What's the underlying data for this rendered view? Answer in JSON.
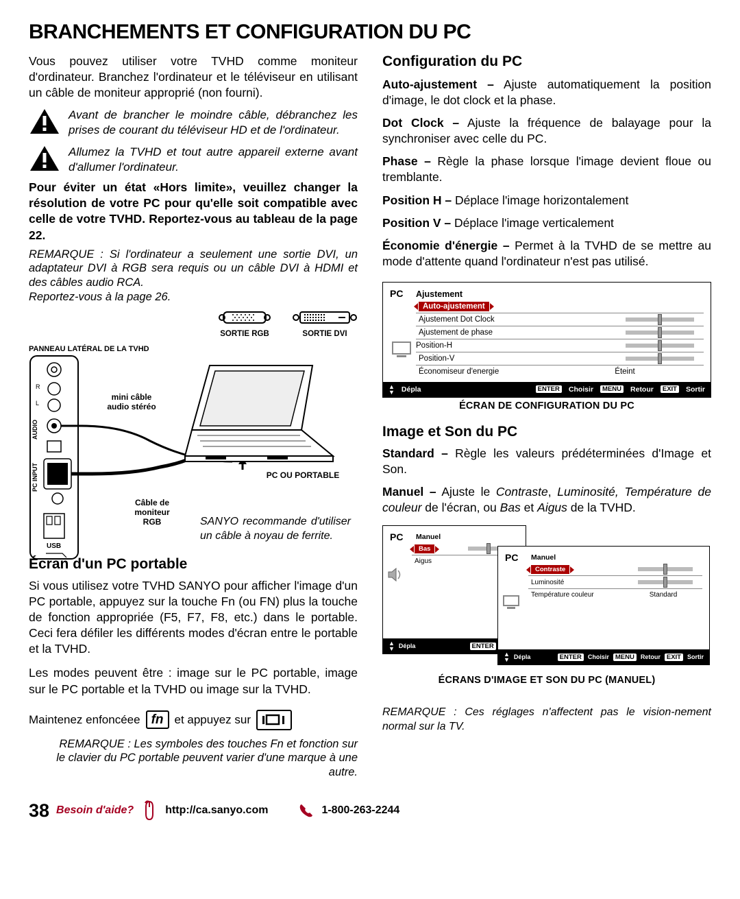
{
  "page_title": "BRANCHEMENTS ET CONFIGURATION DU PC",
  "left": {
    "intro": "Vous pouvez utiliser votre TVHD comme moniteur d'ordinateur. Branchez l'ordinateur et le téléviseur en utilisant un câble de moniteur approprié (non fourni).",
    "warn1": "Avant de brancher le moindre câble, débranchez les prises de courant du téléviseur HD et de l'ordinateur.",
    "warn2": "Allumez la TVHD et tout autre appareil externe avant d'allumer l'ordinateur.",
    "bold_note": "Pour éviter un état «Hors limite», veuillez changer la résolution de votre PC pour qu'elle soit compatible avec celle de votre TVHD. Reportez-vous au tableau de la page 22.",
    "remark1": "REMARQUE : Si l'ordinateur a seulement une sortie DVI, un adaptateur DVI à RGB sera requis ou un câble DVI à HDMI et des câbles audio RCA.",
    "remark1b": "Reportez-vous à la page 26.",
    "fig": {
      "sortie_rgb": "SORTIE RGB",
      "sortie_dvi": "SORTIE DVI",
      "panel_label": "PANNEAU LATÉRAL DE LA TVHD",
      "mini_cable": "mini câble",
      "audio_stereo": "audio stéréo",
      "audio_v": "AUDIO",
      "pcinput_v": "PC INPUT",
      "usb": "USB",
      "pc_laptop": "PC OU PORTABLE",
      "cable": "Câble de",
      "moniteur": "moniteur",
      "rgb": "RGB",
      "reco": "SANYO recommande d'utiliser un câble à noyau de ferrite."
    },
    "h_ecran": "Écran d'un PC portable",
    "ecran_p1": "Si vous utilisez votre TVHD SANYO pour afficher l'image d'un PC portable, appuyez sur la touche Fn (ou FN) plus la touche de fonction appropriée (F5, F7, F8, etc.) dans le portable. Ceci fera défiler les différents modes d'écran entre le portable et la TVHD.",
    "ecran_p2": "Les modes peuvent être : image sur le PC portable, image sur le PC portable et la TVHD ou image sur la TVHD.",
    "fn_pre": "Maintenez enfoncéee",
    "fn_key": "fn",
    "fn_mid": "et appuyez sur",
    "remark_fn": "REMARQUE : Les symboles des touches Fn et fonction sur le clavier du PC portable peuvent varier d'une marque à une autre."
  },
  "right": {
    "h_config": "Configuration du PC",
    "defs": {
      "auto_t": "Auto-ajustement –",
      "auto_d": " Ajuste automatiquement la position d'image, le dot clock et la phase.",
      "dot_t": "Dot Clock –",
      "dot_d": " Ajuste la fréquence de balayage pour la synchroniser avec celle du PC.",
      "phase_t": "Phase –",
      "phase_d": " Règle la phase lorsque l'image devient floue ou tremblante.",
      "posh_t": "Position H –",
      "posh_d": " Déplace l'image horizontalement",
      "posv_t": "Position V –",
      "posv_d": " Déplace l'image verticalement",
      "eco_t": "Économie d'énergie –",
      "eco_d": " Permet à la TVHD de se mettre au mode d'attente quand l'ordinateur n'est pas utilisé."
    },
    "osd1": {
      "pc": "PC",
      "title": "Ajustement",
      "rows": [
        "Auto-ajustement",
        "Ajustement Dot Clock",
        "Ajustement de phase",
        "Position-H",
        "Position-V",
        "Économiseur d'energie"
      ],
      "eteint": "Éteint",
      "foot": {
        "depla": "Dépla",
        "enter": "ENTER",
        "choisir": "Choisir",
        "menu": "MENU",
        "retour": "Retour",
        "exit": "EXIT",
        "sortir": "Sortir"
      },
      "caption": "ÉCRAN DE CONFIGURATION DU PC",
      "slider_track": "#bbbbbb",
      "slider_pos_pct": 50
    },
    "h_image": "Image et Son du PC",
    "img_p1_t": "Standard –",
    "img_p1_d": " Règle les valeurs prédéterminées d'Image et Son.",
    "img_p2_t": "Manuel –",
    "img_p2_d_pre": " Ajuste le ",
    "img_p2_d_i1": "Contraste",
    "img_p2_d_c1": ", ",
    "img_p2_d_i2": "Luminosité, Température de couleur",
    "img_p2_d_c2": " de l'écran, ou ",
    "img_p2_d_i3": "Bas",
    "img_p2_d_c3": " et ",
    "img_p2_d_i4": "Aigus",
    "img_p2_d_c4": " de la TVHD.",
    "osd2": {
      "back": {
        "title": "Manuel",
        "rows": [
          "Bas",
          "Aigus"
        ]
      },
      "front": {
        "title": "Manuel",
        "rows": [
          "Contraste",
          "Luminosité",
          "Température couleur"
        ],
        "standard": "Standard"
      },
      "caption": "ÉCRANS D'IMAGE ET SON DU PC (MANUEL)"
    },
    "remark_bottom": "REMARQUE : Ces réglages n'affectent pas le vision-nement normal sur la TV."
  },
  "footer": {
    "page": "38",
    "help": "Besoin d'aide?",
    "url": "http://ca.sanyo.com",
    "phone": "1-800-263-2244"
  },
  "colors": {
    "accent_red": "#a50021",
    "osd_hl": "#a00000",
    "slider": "#bbbbbb"
  }
}
